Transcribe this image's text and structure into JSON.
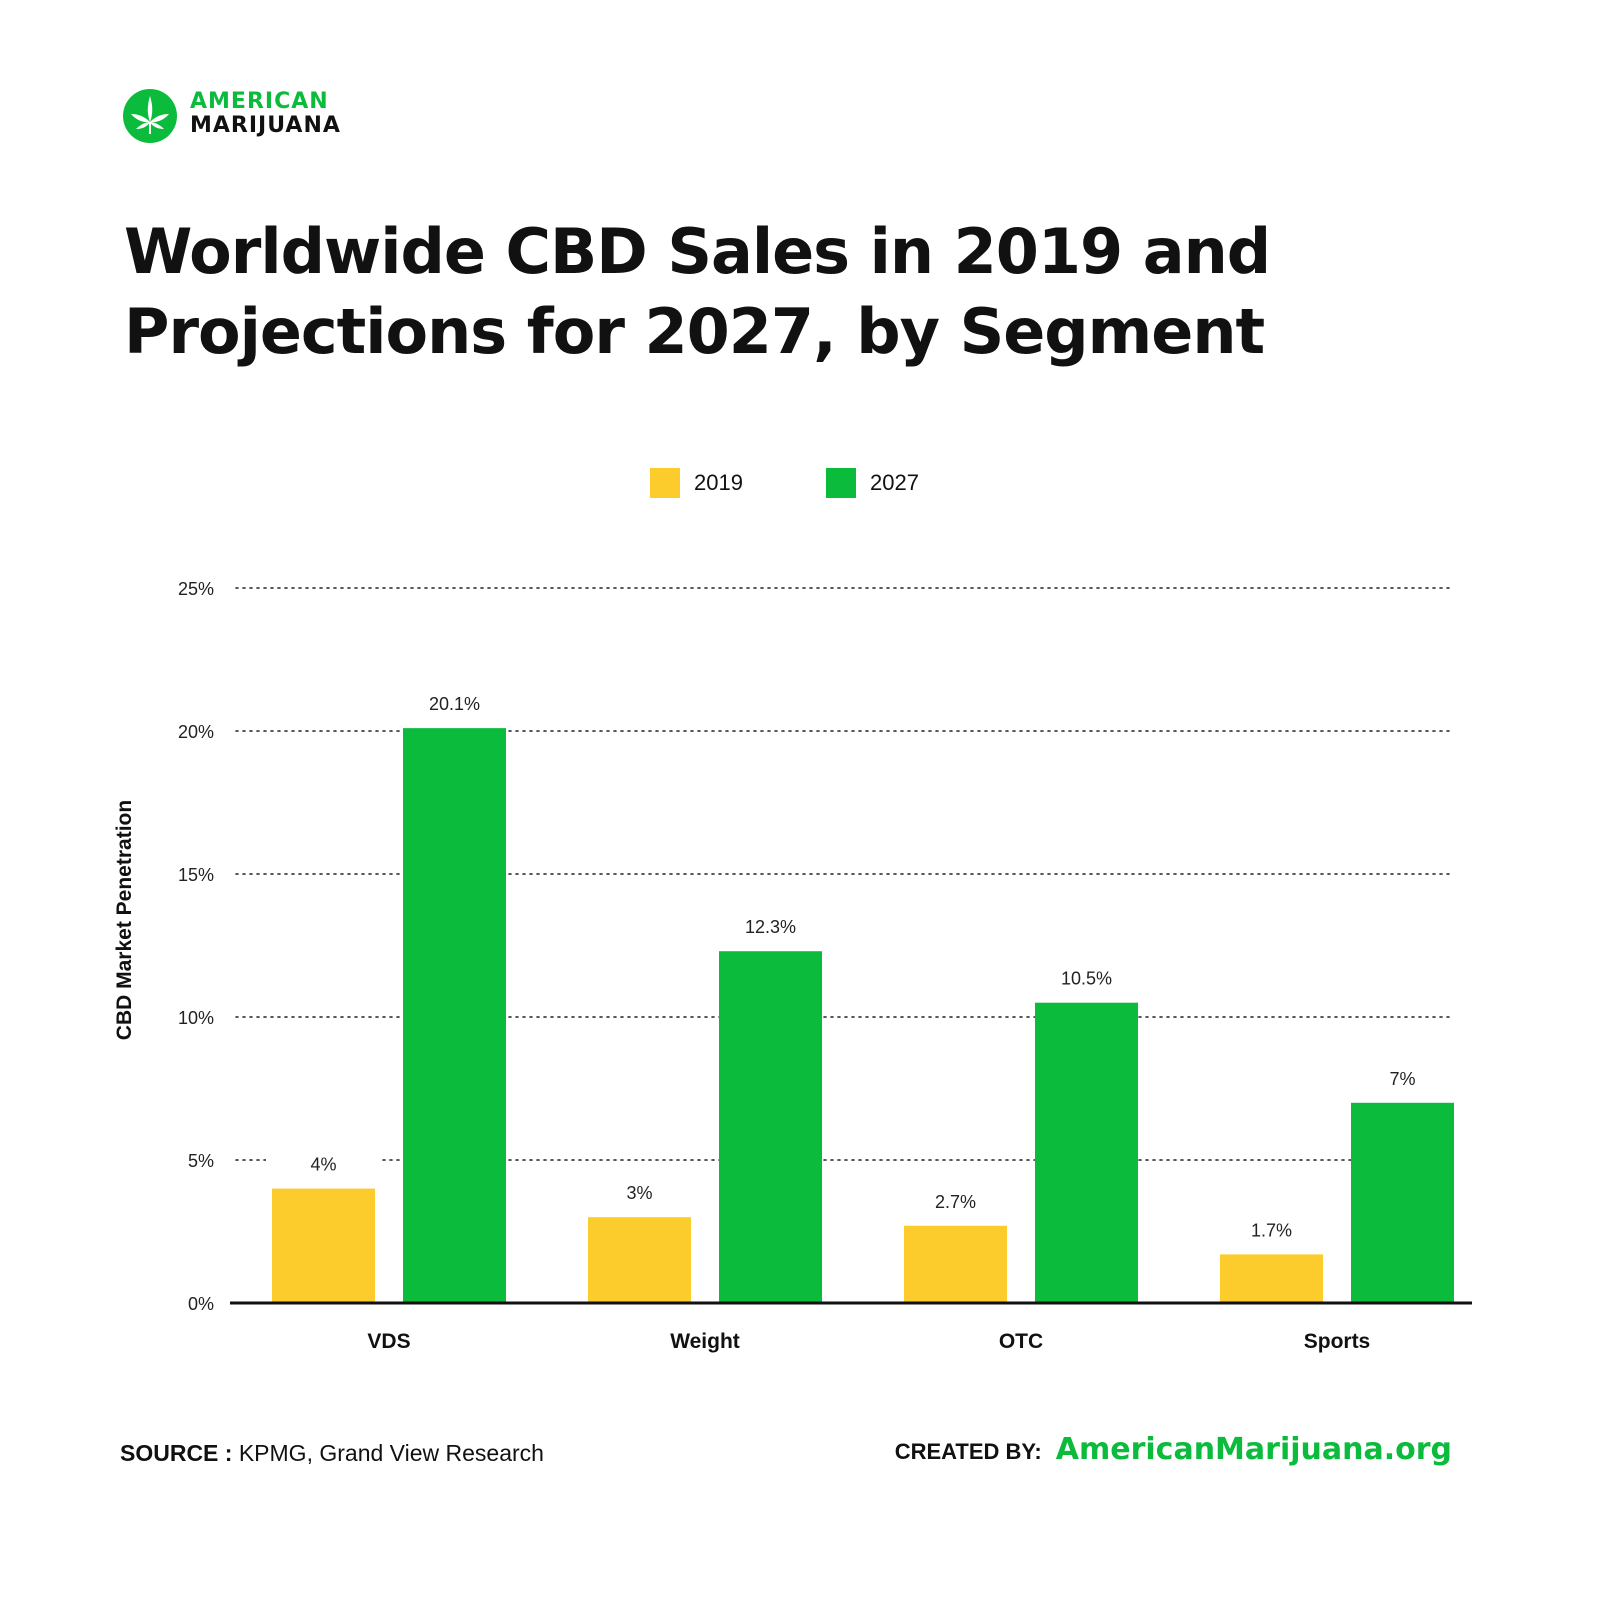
{
  "brand": {
    "line1": "AMERICAN",
    "line2": "MARIJUANA",
    "logo_icon": "cannabis-leaf-circle-icon",
    "green": "#0bbb3c",
    "yellow": "#fbcc2b"
  },
  "chart_data": {
    "type": "bar",
    "title": "Worldwide CBD Sales in 2019 and Projections for 2027, by Segment",
    "ylabel": "CBD Market Penetration",
    "xlabel": "",
    "ylim": [
      0,
      25
    ],
    "yticks": [
      "0%",
      "5%",
      "10%",
      "15%",
      "20%",
      "25%"
    ],
    "ytick_values": [
      0,
      5,
      10,
      15,
      20,
      25
    ],
    "grid": "dotted horizontal",
    "legend_position": "top-center",
    "categories": [
      "VDS",
      "Weight",
      "OTC",
      "Sports"
    ],
    "series": [
      {
        "name": "2019",
        "color": "#fbcc2b",
        "values": [
          4,
          3,
          2.7,
          1.7
        ],
        "labels": [
          "4%",
          "3%",
          "2.7%",
          "1.7%"
        ]
      },
      {
        "name": "2027",
        "color": "#0bbb3c",
        "values": [
          20.1,
          12.3,
          10.5,
          7
        ],
        "labels": [
          "20.1%",
          "12.3%",
          "10.5%",
          "7%"
        ]
      }
    ]
  },
  "footer": {
    "source_label": "SOURCE :",
    "source_text": "KPMG, Grand View Research",
    "created_label": "CREATED BY:",
    "created_site": "AmericanMarijuana.org"
  }
}
